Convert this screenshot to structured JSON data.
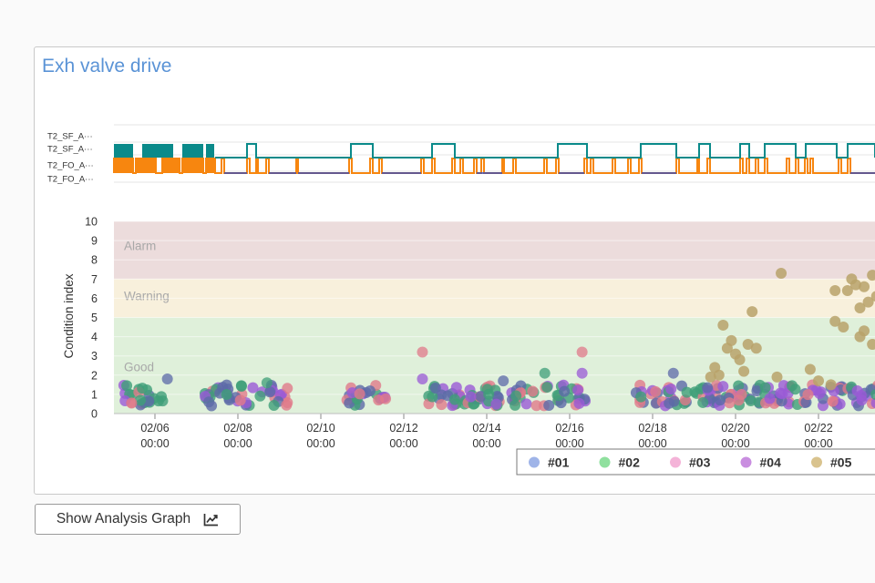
{
  "panel": {
    "title": "Exh valve drive"
  },
  "button": {
    "label": "Show Analysis Graph",
    "icon": "line-chart-icon"
  },
  "colors": {
    "alarm_band": "#ecdcdc",
    "warning_band": "#f8f0dc",
    "good_band": "#dff0da",
    "signal_sf": "#0a8a8a",
    "signal_fo": "#f7860f",
    "signal_base": "#3349b8"
  },
  "chart_data": [
    {
      "type": "step",
      "signals": [
        "T2_SF_A···",
        "T2_SF_A···",
        "T2_FO_A···",
        "T2_FO_A···"
      ]
    },
    {
      "type": "scatter",
      "ylabel": "Condition index",
      "ylim": [
        0,
        10
      ],
      "yticks": [
        0,
        1,
        2,
        3,
        4,
        5,
        6,
        7,
        8,
        9,
        10
      ],
      "xticks": [
        {
          "line1": "02/06",
          "line2": "00:00",
          "day": 6
        },
        {
          "line1": "02/08",
          "line2": "00:00",
          "day": 8
        },
        {
          "line1": "02/10",
          "line2": "00:00",
          "day": 10
        },
        {
          "line1": "02/12",
          "line2": "00:00",
          "day": 12
        },
        {
          "line1": "02/14",
          "line2": "00:00",
          "day": 14
        },
        {
          "line1": "02/16",
          "line2": "00:00",
          "day": 16
        },
        {
          "line1": "02/18",
          "line2": "00:00",
          "day": 18
        },
        {
          "line1": "02/20",
          "line2": "00:00",
          "day": 20
        },
        {
          "line1": "02/22",
          "line2": "00:00",
          "day": 22
        }
      ],
      "bands": [
        {
          "label": "Alarm",
          "from": 7,
          "to": 10,
          "color": "#ecdcdc"
        },
        {
          "label": "Warning",
          "from": 5,
          "to": 7,
          "color": "#f8f0dc"
        },
        {
          "label": "Good",
          "from": 0,
          "to": 5,
          "color": "#dff0da"
        }
      ],
      "legend_position": "bottom-right",
      "series": [
        {
          "name": "#01",
          "color": "#9fb4e8"
        },
        {
          "name": "#02",
          "color": "#8fe09e"
        },
        {
          "name": "#03",
          "color": "#f4b3d8"
        },
        {
          "name": "#04",
          "color": "#c98ee0"
        },
        {
          "name": "#05",
          "color": "#d9c38e"
        }
      ]
    }
  ]
}
